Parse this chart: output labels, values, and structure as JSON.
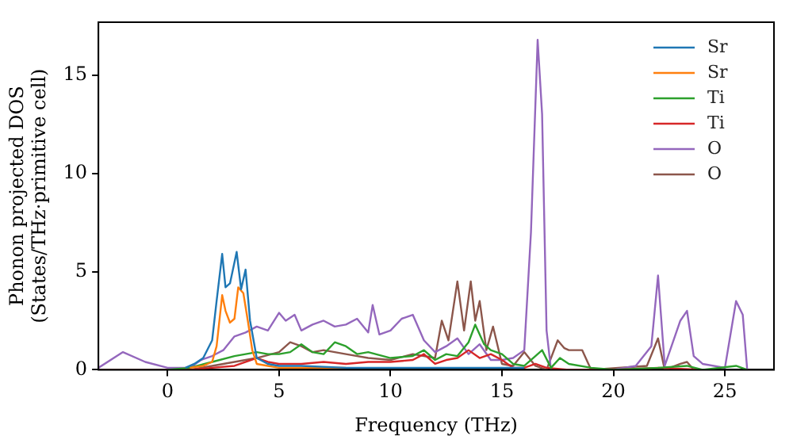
{
  "chart_data": {
    "type": "line",
    "xlabel": "Frequency (THz)",
    "ylabel": "Phonon projected DOS\n(States/THz·primitive cell)",
    "xlim": [
      -3.1,
      27.2
    ],
    "ylim": [
      0,
      17.7
    ],
    "xticks": [
      0,
      5,
      10,
      15,
      20,
      25
    ],
    "yticks": [
      0,
      5,
      10,
      15
    ],
    "grid": false,
    "legend": "top right",
    "marker": "none",
    "line_style": "solid",
    "series": [
      {
        "name": "Sr",
        "color": "#1f77b4",
        "x": [
          0.8,
          1.2,
          1.6,
          2,
          2.2,
          2.45,
          2.6,
          2.8,
          3.1,
          3.3,
          3.5,
          3.7,
          4,
          4.5,
          5,
          6,
          8,
          10,
          12,
          14,
          16
        ],
        "values": [
          0.1,
          0.3,
          0.6,
          1.5,
          3.5,
          5.9,
          4.2,
          4.4,
          6.0,
          4.1,
          5.1,
          2.5,
          0.6,
          0.3,
          0.2,
          0.2,
          0.1,
          0.1,
          0.1,
          0.1,
          0.1
        ]
      },
      {
        "name": "Sr",
        "color": "#ff7f0e",
        "x": [
          1,
          1.6,
          2,
          2.2,
          2.45,
          2.6,
          2.8,
          3.0,
          3.17,
          3.4,
          3.6,
          3.8,
          4,
          4.5,
          5,
          6,
          8
        ],
        "values": [
          0.1,
          0.2,
          0.4,
          1.2,
          3.8,
          3.0,
          2.4,
          2.6,
          4.2,
          3.9,
          2.5,
          1.0,
          0.3,
          0.2,
          0.1,
          0.1,
          0.1
        ]
      },
      {
        "name": "Ti",
        "color": "#2ca02c",
        "x": [
          0,
          1,
          2,
          3,
          4,
          4.5,
          5,
          5.5,
          6,
          6.5,
          7,
          7.5,
          8,
          8.5,
          9,
          10,
          11,
          11.5,
          12,
          12.5,
          13,
          13.5,
          13.8,
          14.2,
          14.5,
          15,
          15.5,
          16,
          16.5,
          16.8,
          17.2,
          17.6,
          18,
          19,
          20,
          22,
          23.3,
          24,
          25.5,
          26
        ],
        "values": [
          0,
          0.1,
          0.4,
          0.7,
          0.9,
          0.8,
          0.8,
          0.9,
          1.3,
          0.9,
          0.8,
          1.4,
          1.2,
          0.8,
          0.9,
          0.6,
          0.7,
          1.0,
          0.5,
          0.8,
          0.7,
          1.4,
          2.3,
          1.3,
          1.0,
          0.8,
          0.3,
          0.2,
          0.7,
          1.0,
          0.1,
          0.6,
          0.3,
          0.1,
          0,
          0.1,
          0.2,
          0,
          0.2,
          0
        ]
      },
      {
        "name": "Ti",
        "color": "#d62728",
        "x": [
          0,
          1,
          2,
          3,
          4,
          4.5,
          5,
          6,
          7,
          8,
          9,
          10,
          11,
          11.5,
          12,
          12.5,
          13,
          13.5,
          14,
          14.5,
          15,
          15.5,
          16,
          16.5,
          17,
          18,
          20,
          22,
          24
        ],
        "values": [
          0,
          0,
          0.1,
          0.2,
          0.6,
          0.4,
          0.3,
          0.3,
          0.4,
          0.3,
          0.4,
          0.4,
          0.5,
          0.8,
          0.3,
          0.5,
          0.6,
          1.0,
          0.6,
          0.8,
          0.5,
          0.1,
          0.1,
          0.3,
          0.1,
          0,
          0,
          0.1,
          0
        ]
      },
      {
        "name": "O",
        "color": "#9467bd",
        "x": [
          -3.1,
          -2,
          -1,
          0,
          1,
          1.5,
          2,
          2.5,
          3,
          3.5,
          4,
          4.5,
          5,
          5.3,
          5.7,
          6,
          6.5,
          7,
          7.5,
          8,
          8.5,
          9,
          9.2,
          9.5,
          10,
          10.5,
          11,
          11.5,
          12,
          12.5,
          13,
          13.5,
          14,
          14.5,
          15,
          15.5,
          16,
          16.3,
          16.6,
          16.8,
          17,
          17.2,
          17.5,
          18,
          20,
          21,
          21.7,
          22,
          22.3,
          23,
          23.3,
          23.6,
          24,
          25,
          25.5,
          25.8,
          26
        ],
        "values": [
          0.1,
          0.9,
          0.4,
          0.1,
          0.1,
          0.5,
          0.7,
          1.0,
          1.7,
          1.9,
          2.2,
          2.0,
          2.9,
          2.5,
          2.8,
          2.0,
          2.3,
          2.5,
          2.2,
          2.3,
          2.6,
          1.9,
          3.3,
          1.8,
          2.0,
          2.6,
          2.8,
          1.5,
          0.9,
          1.2,
          1.6,
          0.8,
          1.3,
          0.5,
          0.5,
          0.6,
          1.0,
          7,
          16.8,
          13,
          2,
          0,
          0,
          0,
          0,
          0.2,
          1.2,
          4.8,
          0.2,
          2.5,
          3.0,
          0.7,
          0.3,
          0.1,
          3.5,
          2.8,
          0
        ]
      },
      {
        "name": "O",
        "color": "#8c564b",
        "x": [
          -3.1,
          0,
          1,
          2,
          3,
          4,
          5,
          5.5,
          6,
          6.5,
          7,
          8,
          9,
          10,
          11,
          12,
          12.3,
          12.6,
          13,
          13.3,
          13.6,
          13.8,
          14,
          14.3,
          14.6,
          15,
          15.5,
          16,
          16.5,
          17,
          17.5,
          17.8,
          18,
          18.6,
          19,
          21.5,
          22,
          22.3,
          23,
          23.3,
          23.6,
          24
        ],
        "values": [
          0,
          0,
          0,
          0.2,
          0.4,
          0.6,
          0.9,
          1.4,
          1.2,
          0.9,
          1.0,
          0.8,
          0.6,
          0.5,
          0.8,
          0.6,
          2.5,
          1.5,
          4.5,
          2.0,
          4.5,
          2.5,
          3.5,
          1.0,
          2.2,
          0.3,
          0.2,
          0.9,
          0.2,
          0,
          1.5,
          1.1,
          1.0,
          1.0,
          0,
          0.2,
          1.6,
          0,
          0.3,
          0.4,
          0,
          0
        ]
      }
    ]
  }
}
